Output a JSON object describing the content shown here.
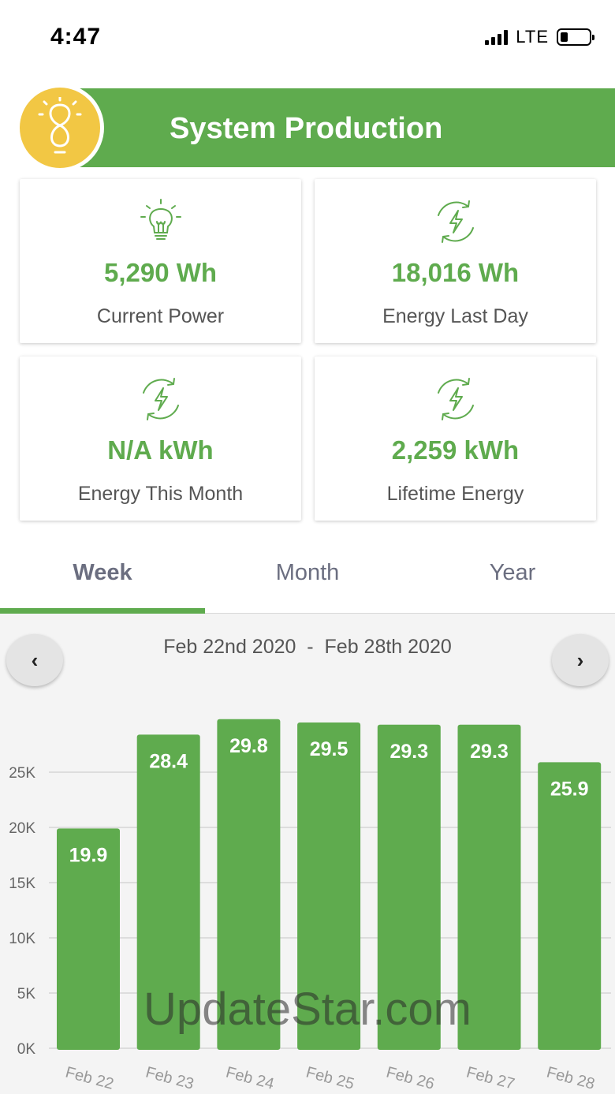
{
  "status_bar": {
    "time": "4:47",
    "network": "LTE",
    "battery_level": 0.25
  },
  "header": {
    "title": "System Production",
    "logo_icon": "lightbulb-infinity-icon"
  },
  "cards": [
    {
      "icon": "lightbulb-icon",
      "value": "5,290 Wh",
      "label": "Current Power"
    },
    {
      "icon": "energy-cycle-icon",
      "value": "18,016 Wh",
      "label": "Energy Last Day"
    },
    {
      "icon": "energy-cycle-icon",
      "value": "N/A kWh",
      "label": "Energy This Month"
    },
    {
      "icon": "energy-cycle-icon",
      "value": "2,259 kWh",
      "label": "Lifetime Energy"
    }
  ],
  "tabs": [
    {
      "label": "Week",
      "active": true
    },
    {
      "label": "Month",
      "active": false
    },
    {
      "label": "Year",
      "active": false
    }
  ],
  "period": {
    "prev_icon": "chevron-left-icon",
    "next_icon": "chevron-right-icon",
    "range": "Feb 22nd 2020  -  Feb 28th 2020"
  },
  "chart_data": {
    "type": "bar",
    "categories": [
      "Feb 22",
      "Feb 23",
      "Feb 24",
      "Feb 25",
      "Feb 26",
      "Feb 27",
      "Feb 28"
    ],
    "values": [
      19.9,
      28.4,
      29.8,
      29.5,
      29.3,
      29.3,
      25.9
    ],
    "data_labels": [
      "19.9",
      "28.4",
      "29.8",
      "29.5",
      "29.3",
      "29.3",
      "25.9"
    ],
    "y_ticks": [
      "0K",
      "5K",
      "10K",
      "15K",
      "20K",
      "25K"
    ],
    "ylim": [
      0,
      30000
    ],
    "grid": true,
    "colors": {
      "bar": "#5fab4e",
      "label": "#ffffff"
    }
  },
  "watermark": "UpdateStar.com",
  "colors": {
    "accent": "#5fab4e",
    "logo": "#f2c744"
  }
}
